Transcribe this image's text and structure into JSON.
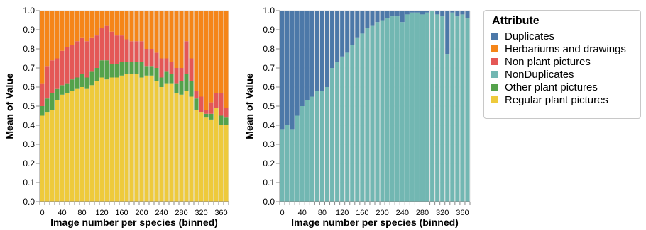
{
  "chart_data": [
    {
      "type": "bar",
      "stacked": true,
      "xlabel": "Image number per species (binned)",
      "ylabel": "Mean of Value",
      "ylim": [
        0,
        1
      ],
      "y_ticks": [
        "0.0",
        "0.1",
        "0.2",
        "0.3",
        "0.4",
        "0.5",
        "0.6",
        "0.7",
        "0.8",
        "0.9",
        "1.0"
      ],
      "x_ticks": [
        "0",
        "40",
        "80",
        "120",
        "160",
        "200",
        "240",
        "280",
        "320",
        "360"
      ],
      "grid": true,
      "x_bin_start": [
        0,
        10,
        20,
        30,
        40,
        50,
        60,
        70,
        80,
        90,
        100,
        110,
        120,
        130,
        140,
        150,
        160,
        170,
        180,
        190,
        200,
        210,
        220,
        230,
        240,
        250,
        260,
        270,
        280,
        290,
        300,
        310,
        320,
        330,
        340,
        350,
        360,
        370
      ],
      "series": [
        {
          "name": "Regular plant pictures",
          "color": "#eeca3b",
          "values": [
            0.45,
            0.47,
            0.48,
            0.53,
            0.56,
            0.57,
            0.58,
            0.59,
            0.6,
            0.59,
            0.61,
            0.63,
            0.65,
            0.64,
            0.65,
            0.65,
            0.66,
            0.67,
            0.67,
            0.67,
            0.65,
            0.66,
            0.66,
            0.63,
            0.6,
            0.62,
            0.62,
            0.57,
            0.56,
            0.58,
            0.55,
            0.48,
            0.47,
            0.44,
            0.43,
            0.49,
            0.4,
            0.4
          ]
        },
        {
          "name": "Other plant pictures",
          "color": "#54a24b",
          "values": [
            0.05,
            0.07,
            0.09,
            0.06,
            0.05,
            0.05,
            0.06,
            0.06,
            0.07,
            0.06,
            0.07,
            0.07,
            0.09,
            0.1,
            0.07,
            0.07,
            0.07,
            0.06,
            0.06,
            0.06,
            0.08,
            0.05,
            0.05,
            0.07,
            0.05,
            0.06,
            0.05,
            0.05,
            0.07,
            0.09,
            0.08,
            0.06,
            0.0,
            0.02,
            0.03,
            0.0,
            0.05,
            0.04
          ]
        },
        {
          "name": "Non plant pictures",
          "color": "#e45756",
          "values": [
            0.12,
            0.17,
            0.17,
            0.16,
            0.18,
            0.19,
            0.18,
            0.19,
            0.19,
            0.19,
            0.18,
            0.17,
            0.17,
            0.18,
            0.17,
            0.15,
            0.14,
            0.12,
            0.11,
            0.11,
            0.11,
            0.09,
            0.09,
            0.08,
            0.1,
            0.07,
            0.06,
            0.08,
            0.07,
            0.17,
            0.12,
            0.04,
            0.08,
            0.02,
            0.06,
            0.08,
            0.12,
            0.05
          ]
        },
        {
          "name": "Herbariums and drawings",
          "color": "#f58518",
          "values": [
            0.38,
            0.29,
            0.26,
            0.25,
            0.21,
            0.19,
            0.18,
            0.16,
            0.14,
            0.16,
            0.14,
            0.13,
            0.09,
            0.08,
            0.11,
            0.13,
            0.13,
            0.15,
            0.16,
            0.16,
            0.16,
            0.2,
            0.2,
            0.22,
            0.25,
            0.25,
            0.27,
            0.3,
            0.3,
            0.16,
            0.25,
            0.42,
            0.45,
            0.52,
            0.48,
            0.43,
            0.43,
            0.51
          ]
        }
      ]
    },
    {
      "type": "bar",
      "stacked": true,
      "xlabel": "Image number per species (binned)",
      "ylabel": "Mean of Value",
      "ylim": [
        0,
        1
      ],
      "y_ticks": [
        "0.0",
        "0.1",
        "0.2",
        "0.3",
        "0.4",
        "0.5",
        "0.6",
        "0.7",
        "0.8",
        "0.9",
        "1.0"
      ],
      "x_ticks": [
        "0",
        "40",
        "80",
        "120",
        "160",
        "200",
        "240",
        "280",
        "320",
        "360"
      ],
      "grid": true,
      "x_bin_start": [
        0,
        10,
        20,
        30,
        40,
        50,
        60,
        70,
        80,
        90,
        100,
        110,
        120,
        130,
        140,
        150,
        160,
        170,
        180,
        190,
        200,
        210,
        220,
        230,
        240,
        250,
        260,
        270,
        280,
        290,
        300,
        310,
        320,
        330,
        340,
        350,
        360,
        370
      ],
      "series": [
        {
          "name": "NonDuplicates",
          "color": "#72b7b2",
          "values": [
            0.38,
            0.4,
            0.38,
            0.45,
            0.5,
            0.53,
            0.55,
            0.58,
            0.58,
            0.6,
            0.7,
            0.73,
            0.76,
            0.78,
            0.82,
            0.86,
            0.88,
            0.91,
            0.92,
            0.94,
            0.95,
            0.96,
            0.97,
            0.97,
            0.94,
            0.98,
            0.99,
            0.99,
            0.98,
            0.99,
            1.0,
            0.98,
            0.97,
            0.77,
            0.99,
            0.97,
            0.98,
            0.96
          ]
        },
        {
          "name": "Duplicates",
          "color": "#4c78a8",
          "values": [
            0.62,
            0.6,
            0.62,
            0.55,
            0.5,
            0.47,
            0.45,
            0.42,
            0.42,
            0.4,
            0.3,
            0.27,
            0.24,
            0.22,
            0.18,
            0.14,
            0.12,
            0.09,
            0.08,
            0.06,
            0.05,
            0.04,
            0.03,
            0.03,
            0.06,
            0.02,
            0.01,
            0.01,
            0.02,
            0.01,
            0.0,
            0.02,
            0.03,
            0.23,
            0.01,
            0.03,
            0.02,
            0.04
          ]
        }
      ]
    }
  ],
  "legend": {
    "title": "Attribute",
    "items": [
      {
        "label": "Duplicates",
        "color": "#4c78a8"
      },
      {
        "label": "Herbariums and drawings",
        "color": "#f58518"
      },
      {
        "label": "Non plant pictures",
        "color": "#e45756"
      },
      {
        "label": "NonDuplicates",
        "color": "#72b7b2"
      },
      {
        "label": "Other plant pictures",
        "color": "#54a24b"
      },
      {
        "label": "Regular plant pictures",
        "color": "#eeca3b"
      }
    ]
  }
}
